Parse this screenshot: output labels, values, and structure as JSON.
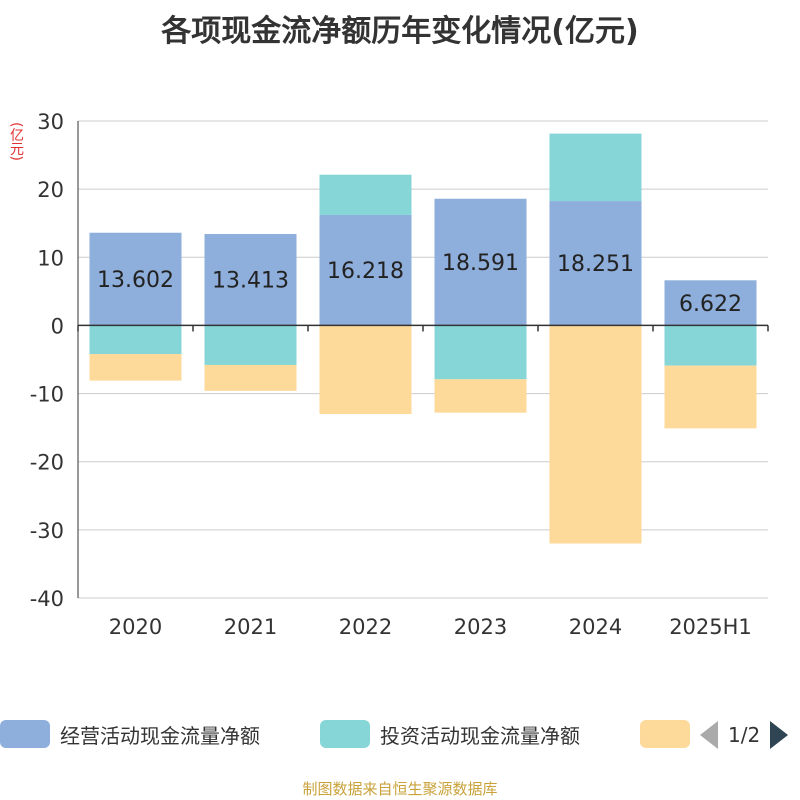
{
  "chart_data": {
    "type": "bar",
    "stacked": true,
    "title": "各项现金流净额历年变化情况(亿元)",
    "ylabel": "(亿元)",
    "categories": [
      "2020",
      "2021",
      "2022",
      "2023",
      "2024",
      "2025H1"
    ],
    "ylim": [
      -40,
      30
    ],
    "yticks": [
      30,
      20,
      10,
      0,
      -10,
      -20,
      -30,
      -40
    ],
    "grid": true,
    "legend_position": "bottom",
    "series": [
      {
        "name": "经营活动现金流量净额",
        "color": "#8eaedb",
        "values": [
          13.602,
          13.413,
          16.218,
          18.591,
          18.251,
          6.622
        ],
        "labels": [
          "13.602",
          "13.413",
          "16.218",
          "18.591",
          "18.251",
          "6.622"
        ]
      },
      {
        "name": "投资活动现金流量净额",
        "color": "#86d6d8",
        "values": [
          -4.2,
          -5.8,
          5.9,
          -7.9,
          9.9,
          -5.9
        ]
      },
      {
        "name": "",
        "color": "#fdd99a",
        "values": [
          -3.9,
          -3.8,
          -13.0,
          -4.9,
          -32.0,
          -9.2
        ]
      }
    ]
  },
  "legend": {
    "items": [
      {
        "label": "经营活动现金流量净额",
        "color": "#8eaedb"
      },
      {
        "label": "投资活动现金流量净额",
        "color": "#86d6d8"
      },
      {
        "label": "",
        "color": "#fdd99a"
      }
    ],
    "page_indicator": "1/2"
  },
  "source_note": "制图数据来自恒生聚源数据库"
}
